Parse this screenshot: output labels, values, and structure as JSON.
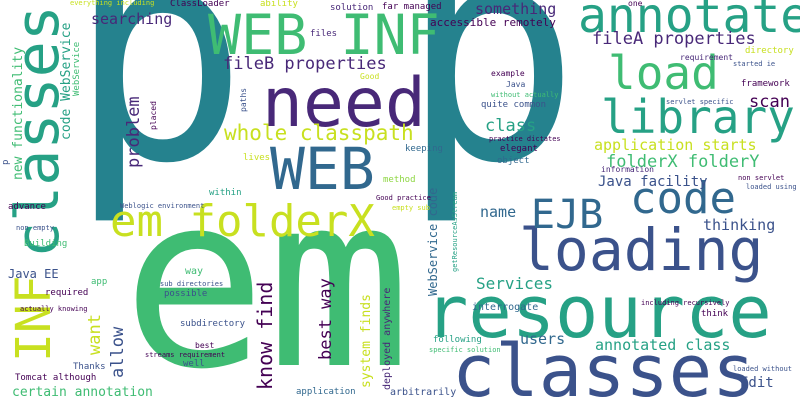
{
  "colors": {
    "background": "#ffffff",
    "teal": "#25828e",
    "green": "#3fbc73",
    "indigo": "#3b528b",
    "purple": "#482878",
    "dark_purple": "#440154",
    "cyan": "#26a185",
    "yellow": "#c8e020",
    "lime": "#8fd744",
    "blue": "#31688e"
  },
  "words": {
    "p_left": "p",
    "p_right": "p",
    "em": "em",
    "resource": "resource",
    "classes_bottom": "classes",
    "need": "need",
    "web_inf": "WEB INF",
    "web": "WEB",
    "loading": "loading",
    "classes_vertical": "classes",
    "inf_vertical": "INF",
    "em_folderx": "em folderX",
    "annotate": "annotate",
    "load": "load",
    "library": "library",
    "ejb": "EJB",
    "code": "code",
    "whole_classpath": "whole classpath",
    "fileb_properties": "fileB properties",
    "filea_properties": "fileA properties",
    "edit": "Edit",
    "scan": "scan",
    "class": "class",
    "application_starts": "application starts",
    "folderx_foldery": "folderX folderY",
    "java_facility": "Java facility",
    "thinking": "thinking",
    "name": "name",
    "services": "Services",
    "users": "users",
    "annotated_class": "annotated class",
    "know_find": "know find",
    "best_way": "best way",
    "want": "want",
    "allow": "allow",
    "problem": "problem",
    "something": "something",
    "searching": "searching",
    "accessible_remotely": "accessible remotely",
    "solution": "solution",
    "far_managed": "far managed",
    "classloader": "ClassLoader",
    "ability": "ability",
    "everything_including": "everything including",
    "files": "files",
    "one": "one",
    "directory": "directory",
    "started_ie": "started ie",
    "requirement": "requirement",
    "framework": "framework",
    "example": "example",
    "java_small": "Java",
    "without_actually": "without actually",
    "quite_common": "quite common",
    "servlet_specific": "servlet specific",
    "practice_dictates": "practice dictates",
    "elegant": "elegant",
    "object": "object",
    "information": "information",
    "non_servlet": "non servlet",
    "loaded_using": "loaded using",
    "keeping": "keeping",
    "lives": "lives",
    "method": "method",
    "within": "within",
    "weblogic_environment": "Weblogic environment",
    "good_practice": "Good practice",
    "empty_sub": "empty sub",
    "paths": "paths",
    "placed": "placed",
    "good": "Good",
    "code_webservice_vertical": "code WebService",
    "webservice_code": "WebService code",
    "new_functionality": "new functionality",
    "system_finds": "system finds",
    "deployed_anywhere": "deployed anywhere",
    "webservice_vertical": "WebService",
    "getresourceasstream": "getResourceAsStream",
    "interrogate": "interrogate",
    "think": "think",
    "including_recursively": "including recursively",
    "following": "following",
    "specific_solution": "specific solution",
    "loaded_without": "loaded without",
    "arbitrarily": "arbitrarily",
    "application": "application",
    "java_ee": "Java EE",
    "building": "Building",
    "non_empty": "non empty",
    "advance": "advance",
    "required": "required",
    "actually_knowing": "actually knowing",
    "certain_annotation": "certain annotation",
    "tomcat_although": "Tomcat although",
    "thanks": "Thanks",
    "app": "app",
    "way": "way",
    "sub_directories": "sub directories",
    "possible": "possible",
    "subdirectory": "subdirectory",
    "best": "best",
    "streams_requirement": "streams requirement",
    "well": "well",
    "p_small": "p"
  }
}
